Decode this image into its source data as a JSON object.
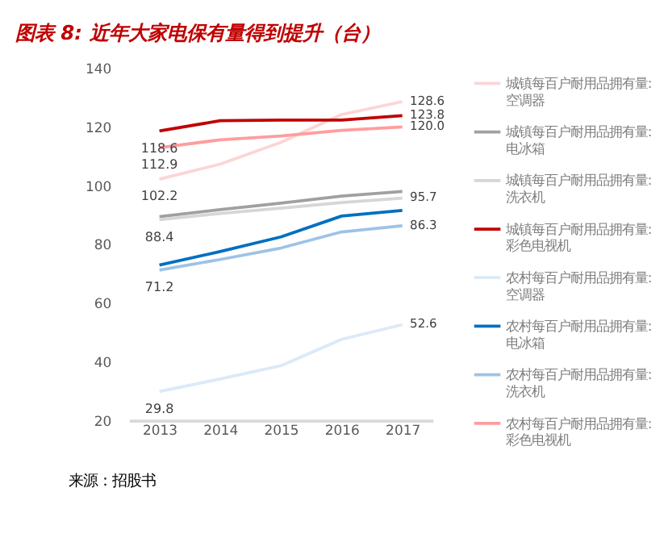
{
  "chart_data": {
    "type": "line",
    "title": "图表 8:  近年大家电保有量得到提升（台）",
    "categories": [
      "2013",
      "2014",
      "2015",
      "2016",
      "2017"
    ],
    "series": [
      {
        "name": "城镇每百户耐用品拥有量:\n空调器",
        "color": "#fcd5d5",
        "values": [
          102.2,
          107.3,
          114.7,
          124.2,
          128.6
        ],
        "value_labels": [
          "102.2",
          null,
          null,
          null,
          "128.6"
        ]
      },
      {
        "name": "城镇每百户耐用品拥有量:\n电冰箱",
        "color": "#a0a0a0",
        "values": [
          89.4,
          91.8,
          94.0,
          96.4,
          98.0
        ]
      },
      {
        "name": "城镇每百户耐用品拥有量:\n洗衣机",
        "color": "#d6d6d6",
        "values": [
          88.4,
          90.5,
          92.3,
          94.2,
          95.7
        ],
        "value_labels": [
          "88.4",
          null,
          null,
          null,
          "95.7"
        ]
      },
      {
        "name": "城镇每百户耐用品拥有量:\n彩色电视机",
        "color": "#c00000",
        "values": [
          118.6,
          122.1,
          122.3,
          122.3,
          123.8
        ],
        "value_labels": [
          "118.6",
          null,
          null,
          null,
          "123.8"
        ]
      },
      {
        "name": "农村每百户耐用品拥有量:\n空调器",
        "color": "#dce9f7",
        "values": [
          29.8,
          34.1,
          38.6,
          47.6,
          52.6
        ],
        "value_labels": [
          "29.8",
          null,
          null,
          null,
          "52.6"
        ]
      },
      {
        "name": "农村每百户耐用品拥有量:\n电冰箱",
        "color": "#0070c0",
        "values": [
          72.9,
          77.5,
          82.5,
          89.6,
          91.5
        ]
      },
      {
        "name": "农村每百户耐用品拥有量:\n洗衣机",
        "color": "#9dc3e6",
        "values": [
          71.2,
          74.8,
          78.7,
          84.2,
          86.3
        ],
        "value_labels": [
          "71.2",
          null,
          null,
          null,
          "86.3"
        ]
      },
      {
        "name": "农村每百户耐用品拥有量:\n彩色电视机",
        "color": "#ff9d9d",
        "values": [
          112.9,
          115.6,
          116.9,
          118.8,
          120.0
        ],
        "value_labels": [
          "112.9",
          null,
          null,
          null,
          "120.0"
        ]
      }
    ],
    "ylim": [
      20,
      140
    ],
    "yticks": [
      20,
      40,
      60,
      80,
      100,
      120,
      140
    ],
    "grid": false,
    "legend": "right",
    "line_style": "solid",
    "marker": "none",
    "annotations": [
      "来源：招股书"
    ]
  }
}
